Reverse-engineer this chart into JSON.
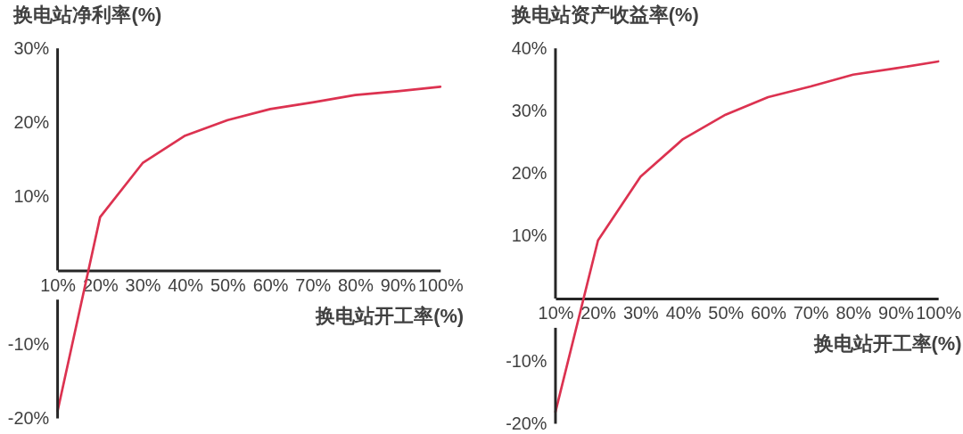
{
  "chart_data": [
    {
      "type": "line",
      "ylabel": "换电站净利率(%)",
      "xlabel": "换电站开工率(%)",
      "x": [
        10,
        20,
        30,
        40,
        50,
        60,
        70,
        80,
        90,
        100
      ],
      "xlim": [
        10,
        100
      ],
      "xticks": [
        {
          "value": 10,
          "label": "10%"
        },
        {
          "value": 20,
          "label": "20%"
        },
        {
          "value": 30,
          "label": "30%"
        },
        {
          "value": 40,
          "label": "40%"
        },
        {
          "value": 50,
          "label": "50%"
        },
        {
          "value": 60,
          "label": "60%"
        },
        {
          "value": 70,
          "label": "70%"
        },
        {
          "value": 80,
          "label": "80%"
        },
        {
          "value": 90,
          "label": "90%"
        },
        {
          "value": 100,
          "label": "100%"
        }
      ],
      "ylim": [
        -20,
        30
      ],
      "yticks": [
        {
          "value": -20,
          "label": "-20%"
        },
        {
          "value": -10,
          "label": "-10%"
        },
        {
          "value": 10,
          "label": "10%"
        },
        {
          "value": 20,
          "label": "20%"
        },
        {
          "value": 30,
          "label": "30%"
        }
      ],
      "series": [
        {
          "color": "#dc3250",
          "values": [
            -19.0,
            7.2,
            14.5,
            18.2,
            20.3,
            21.8,
            22.7,
            23.7,
            24.2,
            24.8
          ]
        }
      ]
    },
    {
      "type": "line",
      "ylabel": "换电站资产收益率(%)",
      "xlabel": "换电站开工率(%)",
      "x": [
        10,
        20,
        30,
        40,
        50,
        60,
        70,
        80,
        90,
        100
      ],
      "xlim": [
        10,
        100
      ],
      "xticks": [
        {
          "value": 10,
          "label": "10%"
        },
        {
          "value": 20,
          "label": "20%"
        },
        {
          "value": 30,
          "label": "30%"
        },
        {
          "value": 40,
          "label": "40%"
        },
        {
          "value": 50,
          "label": "50%"
        },
        {
          "value": 60,
          "label": "60%"
        },
        {
          "value": 70,
          "label": "70%"
        },
        {
          "value": 80,
          "label": "80%"
        },
        {
          "value": 90,
          "label": "90%"
        },
        {
          "value": 100,
          "label": "100%"
        }
      ],
      "ylim": [
        -20,
        40
      ],
      "yticks": [
        {
          "value": -20,
          "label": "-20%"
        },
        {
          "value": -10,
          "label": "-10%"
        },
        {
          "value": 10,
          "label": "10%"
        },
        {
          "value": 20,
          "label": "20%"
        },
        {
          "value": 30,
          "label": "30%"
        },
        {
          "value": 40,
          "label": "40%"
        }
      ],
      "series": [
        {
          "color": "#dc3250",
          "values": [
            -18.1,
            9.3,
            19.5,
            25.5,
            29.4,
            32.2,
            33.9,
            35.8,
            36.8,
            37.9
          ]
        }
      ]
    }
  ]
}
